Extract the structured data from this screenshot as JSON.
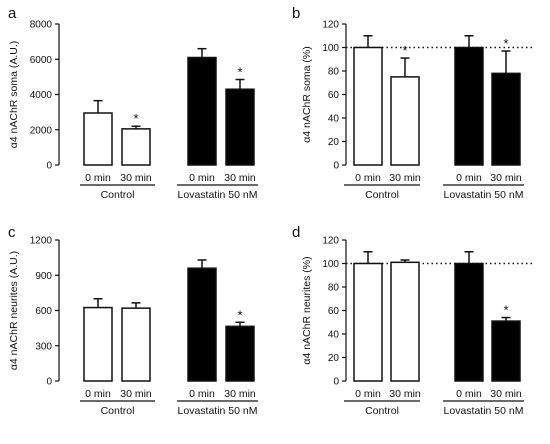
{
  "chart_data": [
    {
      "panel": "a",
      "type": "bar",
      "title": "",
      "ylabel": "α4 nAChR soma (A.U.)",
      "ylim": [
        0,
        8000
      ],
      "yticks": [
        0,
        2000,
        4000,
        6000,
        8000
      ],
      "categories": [
        "0 min",
        "30 min",
        "0 min",
        "30 min"
      ],
      "groups": [
        {
          "label": "Control",
          "bars": [
            0,
            1
          ]
        },
        {
          "label": "Lovastatin 50 nM",
          "bars": [
            2,
            3
          ]
        }
      ],
      "fills": [
        "white",
        "white",
        "black",
        "black"
      ],
      "values": [
        2950,
        2050,
        6100,
        4300
      ],
      "errors": [
        700,
        150,
        500,
        550
      ],
      "significance": [
        "",
        "*",
        "",
        "*"
      ]
    },
    {
      "panel": "b",
      "type": "bar",
      "title": "",
      "ylabel": "α4 nAChR soma (%)",
      "ylim": [
        0,
        120
      ],
      "yticks": [
        0,
        20,
        40,
        60,
        80,
        100,
        120
      ],
      "reference_line": 100,
      "categories": [
        "0 min",
        "30 min",
        "0 min",
        "30 min"
      ],
      "groups": [
        {
          "label": "Control",
          "bars": [
            0,
            1
          ]
        },
        {
          "label": "Lovastatin 50 nM",
          "bars": [
            2,
            3
          ]
        }
      ],
      "fills": [
        "white",
        "white",
        "black",
        "black"
      ],
      "values": [
        100,
        75,
        100,
        78
      ],
      "errors": [
        10,
        16,
        10,
        19
      ],
      "significance": [
        "",
        "*",
        "",
        "*"
      ]
    },
    {
      "panel": "c",
      "type": "bar",
      "title": "",
      "ylabel": "α4 nAChR neurites (A.U.)",
      "ylim": [
        0,
        1200
      ],
      "yticks": [
        0,
        300,
        600,
        900,
        1200
      ],
      "categories": [
        "0 min",
        "30 min",
        "0 min",
        "30 min"
      ],
      "groups": [
        {
          "label": "Control",
          "bars": [
            0,
            1
          ]
        },
        {
          "label": "Lovastatin 50 nM",
          "bars": [
            2,
            3
          ]
        }
      ],
      "fills": [
        "white",
        "white",
        "black",
        "black"
      ],
      "values": [
        625,
        620,
        960,
        465
      ],
      "errors": [
        75,
        45,
        70,
        35
      ],
      "significance": [
        "",
        "",
        "",
        "*"
      ]
    },
    {
      "panel": "d",
      "type": "bar",
      "title": "",
      "ylabel": "α4 nAChR neurites (%)",
      "ylim": [
        0,
        120
      ],
      "yticks": [
        0,
        20,
        40,
        60,
        80,
        100,
        120
      ],
      "reference_line": 100,
      "categories": [
        "0 min",
        "30 min",
        "0 min",
        "30 min"
      ],
      "groups": [
        {
          "label": "Control",
          "bars": [
            0,
            1
          ]
        },
        {
          "label": "Lovastatin 50 nM",
          "bars": [
            2,
            3
          ]
        }
      ],
      "fills": [
        "white",
        "white",
        "black",
        "black"
      ],
      "values": [
        100,
        101,
        100,
        51
      ],
      "errors": [
        10,
        2,
        10,
        3
      ],
      "significance": [
        "",
        "",
        "",
        "*"
      ]
    }
  ]
}
